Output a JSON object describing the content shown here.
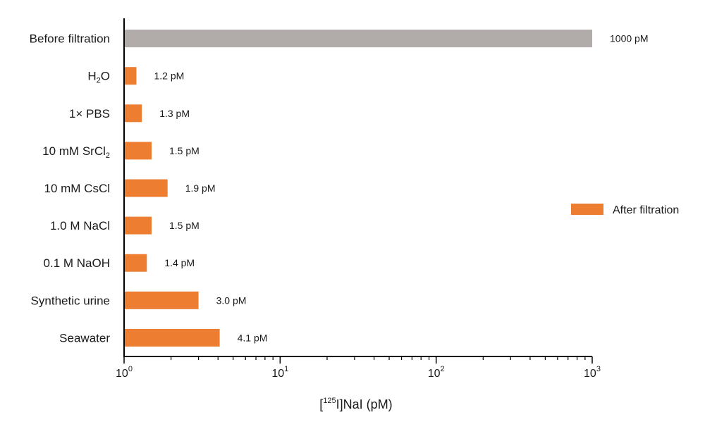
{
  "chart_data": {
    "type": "bar",
    "orientation": "horizontal",
    "x_scale": "log",
    "xlim": [
      1,
      1000
    ],
    "grid": false,
    "legend_position": "right",
    "categories": [
      {
        "prefix": "Before filtration",
        "sub": "",
        "suffix": ""
      },
      {
        "prefix": "H",
        "sub": "2",
        "suffix": "O"
      },
      {
        "prefix": "1× PBS",
        "sub": "",
        "suffix": ""
      },
      {
        "prefix": "10 mM SrCl",
        "sub": "2",
        "suffix": ""
      },
      {
        "prefix": "10 mM CsCl",
        "sub": "",
        "suffix": ""
      },
      {
        "prefix": "1.0 M NaCl",
        "sub": "",
        "suffix": ""
      },
      {
        "prefix": "0.1 M NaOH",
        "sub": "",
        "suffix": ""
      },
      {
        "prefix": "Synthetic urine",
        "sub": "",
        "suffix": ""
      },
      {
        "prefix": "Seawater",
        "sub": "",
        "suffix": ""
      }
    ],
    "values": [
      1000,
      1.2,
      1.3,
      1.5,
      1.9,
      1.5,
      1.4,
      3.0,
      4.1
    ],
    "value_labels": [
      "1000 pM",
      "1.2 pM",
      "1.3 pM",
      "1.5 pM",
      "1.9 pM",
      "1.5 pM",
      "1.4 pM",
      "3.0 pM",
      "4.1 pM"
    ],
    "bar_groups": [
      "before",
      "after",
      "after",
      "after",
      "after",
      "after",
      "after",
      "after",
      "after"
    ],
    "colors": {
      "before": "#b1abaa",
      "after": "#ed7d31"
    },
    "x_ticks": [
      {
        "base": "10",
        "exp": "0"
      },
      {
        "base": "10",
        "exp": "1"
      },
      {
        "base": "10",
        "exp": "2"
      },
      {
        "base": "10",
        "exp": "3"
      }
    ],
    "xlabel": {
      "pre": "[",
      "sup": "125",
      "post": "I]NaI (pM)"
    },
    "legend": [
      {
        "label": "After filtration",
        "group": "after"
      }
    ]
  }
}
